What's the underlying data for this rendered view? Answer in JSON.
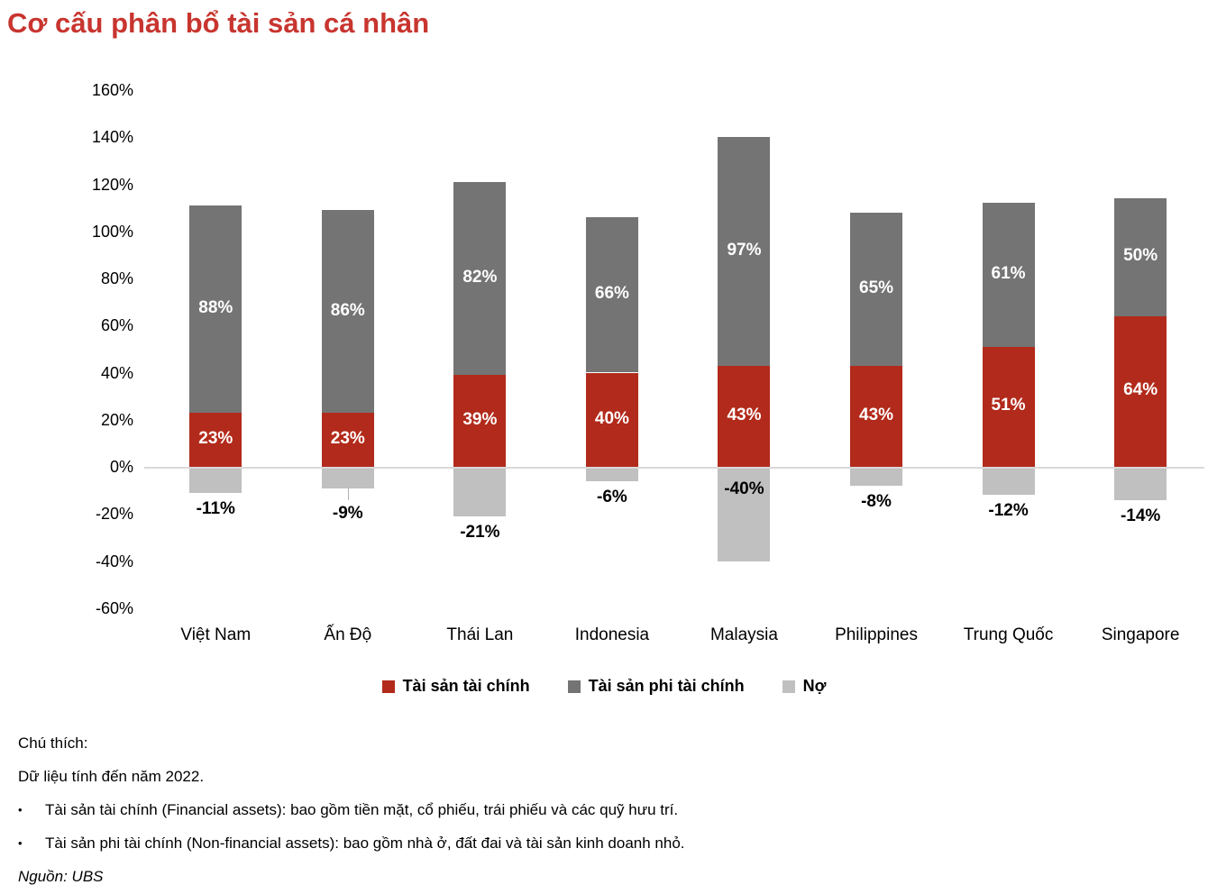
{
  "title": "Cơ cấu phân bổ tài sản cá nhân",
  "colors": {
    "title_accent": "#C8352F",
    "financial": "#B22A1B",
    "non_financial": "#747474",
    "debt": "#C0C0C0",
    "zero_line": "#D9D9D9"
  },
  "chart_data": {
    "type": "bar",
    "stacked": true,
    "title": "Cơ cấu phân bổ tài sản cá nhân",
    "categories": [
      "Việt Nam",
      "Ấn Độ",
      "Thái Lan",
      "Indonesia",
      "Malaysia",
      "Philippines",
      "Trung Quốc",
      "Singapore"
    ],
    "series": [
      {
        "name": "Tài sản tài chính",
        "color": "#B22A1B",
        "values": [
          23,
          23,
          39,
          40,
          43,
          43,
          51,
          64
        ]
      },
      {
        "name": "Tài sản phi tài chính",
        "color": "#747474",
        "values": [
          88,
          86,
          82,
          66,
          97,
          65,
          61,
          50
        ]
      },
      {
        "name": "Nợ",
        "color": "#C0C0C0",
        "values": [
          -11,
          -9,
          -21,
          -6,
          -40,
          -8,
          -12,
          -14
        ]
      }
    ],
    "value_labels": {
      "financial": [
        "23%",
        "23%",
        "39%",
        "40%",
        "43%",
        "43%",
        "51%",
        "64%"
      ],
      "non_financial": [
        "88%",
        "86%",
        "82%",
        "66%",
        "97%",
        "65%",
        "61%",
        "50%"
      ],
      "debt": [
        "-11%",
        "-9%",
        "-21%",
        "-6%",
        "-40%",
        "-8%",
        "-12%",
        "-14%"
      ]
    },
    "ylim": [
      -60,
      160
    ],
    "ytick_step": 20,
    "ytick_labels": [
      "160%",
      "140%",
      "120%",
      "100%",
      "80%",
      "60%",
      "40%",
      "20%",
      "0%",
      "-20%",
      "-40%",
      "-60%"
    ],
    "grid": false,
    "zero_line_color": "#D9D9D9",
    "legend_position": "bottom",
    "xlabel": "",
    "ylabel": ""
  },
  "notes": {
    "heading": "Chú thích:",
    "data_note": "Dữ liệu tính đến năm 2022.",
    "bullet_glyph": "•",
    "bullets": [
      "Tài sản tài chính (Financial assets): bao gồm tiền mặt, cổ phiếu, trái phiếu và các quỹ hưu trí.",
      "Tài sản phi tài chính (Non-financial assets): bao gồm nhà ở, đất đai và tài sản kinh doanh nhỏ."
    ],
    "source": "Nguồn: UBS"
  }
}
